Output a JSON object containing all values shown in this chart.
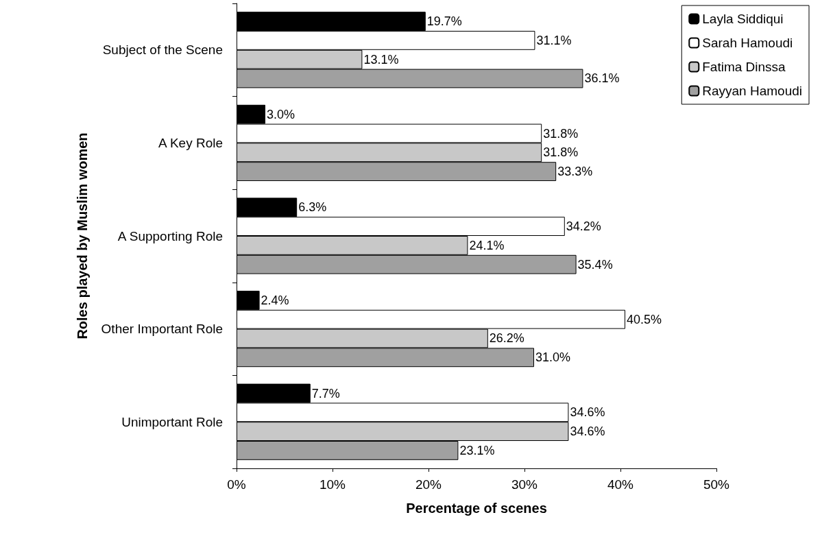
{
  "chart_data": {
    "type": "bar",
    "orientation": "horizontal",
    "xlabel": "Percentage of scenes",
    "ylabel": "Roles played by Muslim women",
    "categories": [
      "Subject of the Scene",
      "A Key Role",
      "A Supporting Role",
      "Other Important Role",
      "Unimportant Role"
    ],
    "series": [
      {
        "name": "Layla Siddiqui",
        "color": "#000000",
        "values": [
          19.7,
          3.0,
          6.3,
          2.4,
          7.7
        ],
        "value_labels": [
          "19.7%",
          "3.0%",
          "6.3%",
          "2.4%",
          "7.7%"
        ]
      },
      {
        "name": "Sarah Hamoudi",
        "color": "#ffffff",
        "values": [
          31.1,
          31.8,
          34.2,
          40.5,
          34.6
        ],
        "value_labels": [
          "31.1%",
          "31.8%",
          "34.2%",
          "40.5%",
          "34.6%"
        ]
      },
      {
        "name": "Fatima Dinssa",
        "color": "#c8c8c8",
        "values": [
          13.1,
          31.8,
          24.1,
          26.2,
          34.6
        ],
        "value_labels": [
          "13.1%",
          "31.8%",
          "24.1%",
          "26.2%",
          "34.6%"
        ]
      },
      {
        "name": "Rayyan Hamoudi",
        "color": "#a0a0a0",
        "values": [
          36.1,
          33.3,
          35.4,
          31.0,
          23.1
        ],
        "value_labels": [
          "36.1%",
          "33.3%",
          "35.4%",
          "31.0%",
          "23.1%"
        ]
      }
    ],
    "xlim": [
      0,
      50
    ],
    "xticks": [
      {
        "value": 0,
        "label": "0%"
      },
      {
        "value": 10,
        "label": "10%"
      },
      {
        "value": 20,
        "label": "20%"
      },
      {
        "value": 30,
        "label": "30%"
      },
      {
        "value": 40,
        "label": "40%"
      },
      {
        "value": 50,
        "label": "50%"
      }
    ],
    "grid": false,
    "legend": "top right"
  }
}
